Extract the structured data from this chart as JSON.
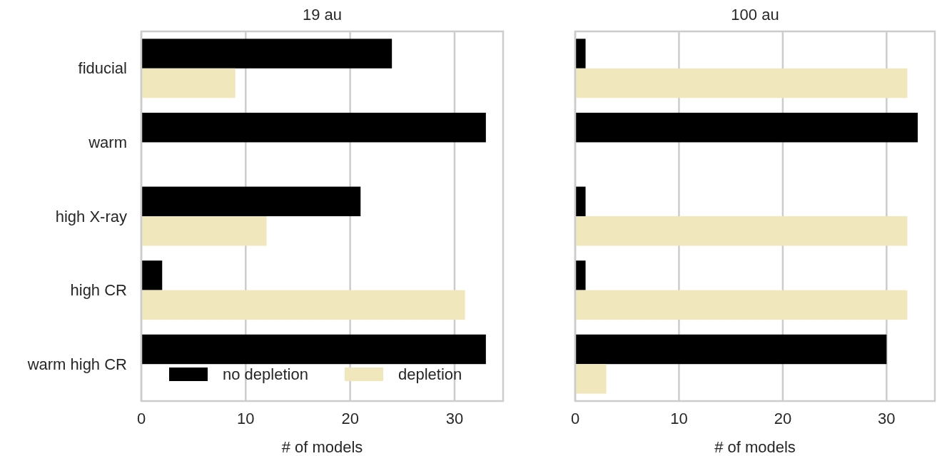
{
  "chart_data": [
    {
      "type": "bar",
      "orientation": "horizontal",
      "title": "19 au",
      "xlabel": "# of models",
      "categories": [
        "fiducial",
        "warm",
        "high X-ray",
        "high CR",
        "warm high CR"
      ],
      "series": [
        {
          "name": "no depletion",
          "color": "#000000",
          "values": [
            24,
            33,
            21,
            2,
            33
          ]
        },
        {
          "name": "depletion",
          "color": "#f0e8bc",
          "values": [
            9,
            0,
            12,
            31,
            0
          ]
        }
      ],
      "xlim": [
        0,
        34.65
      ],
      "xticks": [
        0,
        10,
        20,
        30
      ],
      "grid": "x",
      "legend": "bottom right"
    },
    {
      "type": "bar",
      "orientation": "horizontal",
      "title": "100 au",
      "xlabel": "# of models",
      "categories": [
        null,
        null,
        null,
        null,
        null
      ],
      "series": [
        {
          "color": "#000000",
          "values": [
            1,
            33,
            1,
            1,
            30
          ]
        },
        {
          "color": "#f0e8bc",
          "values": [
            32,
            0,
            32,
            32,
            3
          ]
        }
      ],
      "xlim": [
        0,
        34.65
      ],
      "xticks": [
        0,
        10,
        20,
        30
      ],
      "grid": "x",
      "tick_labels": "x"
    }
  ]
}
